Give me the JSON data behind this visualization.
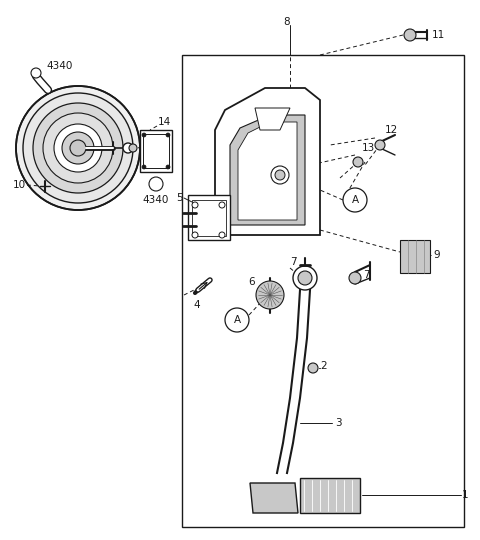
{
  "bg_color": "#ffffff",
  "line_color": "#1a1a1a",
  "gray_fill": "#c8c8c8",
  "dark_gray": "#555555",
  "med_gray": "#888888",
  "fig_width": 4.8,
  "fig_height": 5.4
}
